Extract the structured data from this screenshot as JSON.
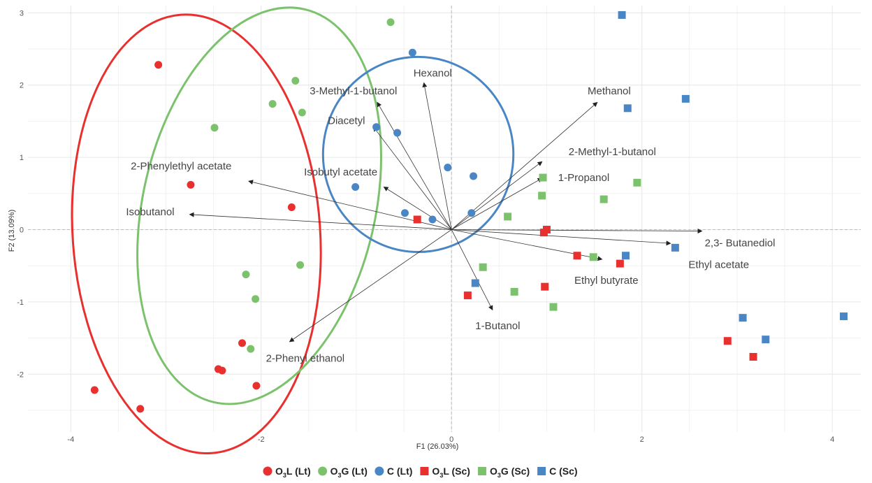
{
  "chart_data": {
    "type": "scatter",
    "subtype": "pca-biplot",
    "xlabel": "F1 (26.03%)",
    "ylabel": "F2 (13.09%)",
    "xlim": [
      -4.45,
      4.3
    ],
    "ylim": [
      -2.8,
      3.1
    ],
    "xticks": [
      -4,
      -2,
      0,
      2,
      4
    ],
    "yticks": [
      -2,
      -1,
      0,
      1,
      2,
      3
    ],
    "grid": true,
    "reference_lines": [
      0,
      0
    ],
    "legend_position": "bottom",
    "series": [
      {
        "name": "O3L (Lt)",
        "label_main": "O",
        "label_sub": "3",
        "label_rest": "L (Lt)",
        "marker": "circle",
        "color": "#e8302f",
        "points": [
          [
            -3.08,
            2.28
          ],
          [
            -2.74,
            0.62
          ],
          [
            -1.68,
            0.31
          ],
          [
            -3.75,
            -2.22
          ],
          [
            -3.27,
            -2.48
          ],
          [
            -2.2,
            -1.57
          ],
          [
            -2.45,
            -1.93
          ],
          [
            -2.41,
            -1.95
          ],
          [
            -2.05,
            -2.16
          ]
        ]
      },
      {
        "name": "O3G (Lt)",
        "label_main": "O",
        "label_sub": "3",
        "label_rest": "G (Lt)",
        "marker": "circle",
        "color": "#7cc26c",
        "points": [
          [
            -0.64,
            2.87
          ],
          [
            -1.64,
            2.06
          ],
          [
            -1.88,
            1.74
          ],
          [
            -1.57,
            1.62
          ],
          [
            -2.49,
            1.41
          ],
          [
            -1.59,
            -0.49
          ],
          [
            -2.16,
            -0.62
          ],
          [
            -2.06,
            -0.96
          ],
          [
            -2.11,
            -1.65
          ]
        ]
      },
      {
        "name": "C (Lt)",
        "label_main": "C (Lt)",
        "label_sub": "",
        "label_rest": "",
        "marker": "circle",
        "color": "#4a86c4",
        "points": [
          [
            -0.41,
            2.45
          ],
          [
            -0.79,
            1.42
          ],
          [
            -0.57,
            1.34
          ],
          [
            -0.04,
            0.86
          ],
          [
            0.23,
            0.74
          ],
          [
            -1.01,
            0.59
          ],
          [
            -0.49,
            0.23
          ],
          [
            -0.2,
            0.14
          ],
          [
            0.21,
            0.23
          ]
        ]
      },
      {
        "name": "O3L (Sc)",
        "label_main": "O",
        "label_sub": "3",
        "label_rest": "L (Sc)",
        "marker": "square",
        "color": "#e8302f",
        "points": [
          [
            -0.36,
            0.14
          ],
          [
            0.97,
            -0.04
          ],
          [
            1.0,
            0.0
          ],
          [
            1.32,
            -0.36
          ],
          [
            1.77,
            -0.47
          ],
          [
            0.98,
            -0.79
          ],
          [
            0.17,
            -0.91
          ],
          [
            2.9,
            -1.54
          ],
          [
            3.17,
            -1.76
          ]
        ]
      },
      {
        "name": "O3G (Sc)",
        "label_main": "O",
        "label_sub": "3",
        "label_rest": "G (Sc)",
        "marker": "square",
        "color": "#7cc26c",
        "points": [
          [
            0.96,
            0.72
          ],
          [
            1.95,
            0.65
          ],
          [
            0.95,
            0.47
          ],
          [
            1.6,
            0.42
          ],
          [
            0.59,
            0.18
          ],
          [
            1.49,
            -0.38
          ],
          [
            0.33,
            -0.52
          ],
          [
            0.66,
            -0.86
          ],
          [
            1.07,
            -1.07
          ]
        ]
      },
      {
        "name": "C (Sc)",
        "label_main": "C (Sc)",
        "label_sub": "",
        "label_rest": "",
        "marker": "square",
        "color": "#4a86c4",
        "points": [
          [
            1.79,
            2.97
          ],
          [
            1.85,
            1.68
          ],
          [
            2.46,
            1.81
          ],
          [
            2.35,
            -0.25
          ],
          [
            1.83,
            -0.36
          ],
          [
            0.25,
            -0.74
          ],
          [
            3.06,
            -1.22
          ],
          [
            3.3,
            -1.52
          ],
          [
            4.12,
            -1.2
          ]
        ]
      }
    ],
    "vectors": [
      {
        "label": "Hexanol",
        "x": -0.29,
        "y": 2.03,
        "label_x": -0.4,
        "label_y": 2.12,
        "anchor": "start"
      },
      {
        "label": "3-Methyl-1-butanol",
        "x": -0.78,
        "y": 1.76,
        "label_x": -1.49,
        "label_y": 1.87,
        "anchor": "start"
      },
      {
        "label": "Diacetyl",
        "x": -0.82,
        "y": 1.42,
        "label_x": -1.3,
        "label_y": 1.46,
        "anchor": "start"
      },
      {
        "label": "Methanol",
        "x": 1.53,
        "y": 1.76,
        "label_x": 1.43,
        "label_y": 1.87,
        "anchor": "start"
      },
      {
        "label": "2-Methyl-1-butanol",
        "x": 0.95,
        "y": 0.94,
        "label_x": 1.23,
        "label_y": 1.03,
        "anchor": "start"
      },
      {
        "label": "1-Propanol",
        "x": 0.95,
        "y": 0.71,
        "label_x": 1.12,
        "label_y": 0.67,
        "anchor": "start"
      },
      {
        "label": "2-Phenylethyl acetate",
        "x": -2.13,
        "y": 0.67,
        "label_x": -3.37,
        "label_y": 0.83,
        "anchor": "start"
      },
      {
        "label": "Isobutyl acetate",
        "x": -0.71,
        "y": 0.59,
        "label_x": -1.55,
        "label_y": 0.75,
        "anchor": "start"
      },
      {
        "label": "Isobutanol",
        "x": -2.75,
        "y": 0.21,
        "label_x": -3.42,
        "label_y": 0.2,
        "anchor": "start"
      },
      {
        "label": "2,3- Butanediol",
        "x": 2.63,
        "y": -0.02,
        "label_x": 2.66,
        "label_y": -0.23,
        "anchor": "start"
      },
      {
        "label": "Ethyl acetate",
        "x": 2.3,
        "y": -0.19,
        "label_x": 2.49,
        "label_y": -0.53,
        "anchor": "start"
      },
      {
        "label": "Ethyl butyrate",
        "x": 1.58,
        "y": -0.41,
        "label_x": 1.29,
        "label_y": -0.75,
        "anchor": "start"
      },
      {
        "label": "1-Butanol",
        "x": 0.43,
        "y": -1.11,
        "label_x": 0.25,
        "label_y": -1.38,
        "anchor": "start"
      },
      {
        "label": "2-Phenyl ethanol",
        "x": -1.7,
        "y": -1.55,
        "label_x": -1.95,
        "label_y": -1.83,
        "anchor": "start"
      }
    ],
    "ellipses": [
      {
        "group": "O3L (Lt)",
        "cx": -2.68,
        "cy": -0.06,
        "rx": 1.3,
        "ry": 3.04,
        "rotate": -4,
        "color": "#e8302f"
      },
      {
        "group": "O3G (Lt)",
        "cx": -2.02,
        "cy": 0.33,
        "rx": 1.22,
        "ry": 2.79,
        "rotate": 13,
        "color": "#7cc26c"
      },
      {
        "group": "C (Lt)",
        "cx": -0.35,
        "cy": 1.04,
        "rx": 1.0,
        "ry": 1.35,
        "rotate": 0,
        "color": "#4a86c4"
      }
    ]
  }
}
